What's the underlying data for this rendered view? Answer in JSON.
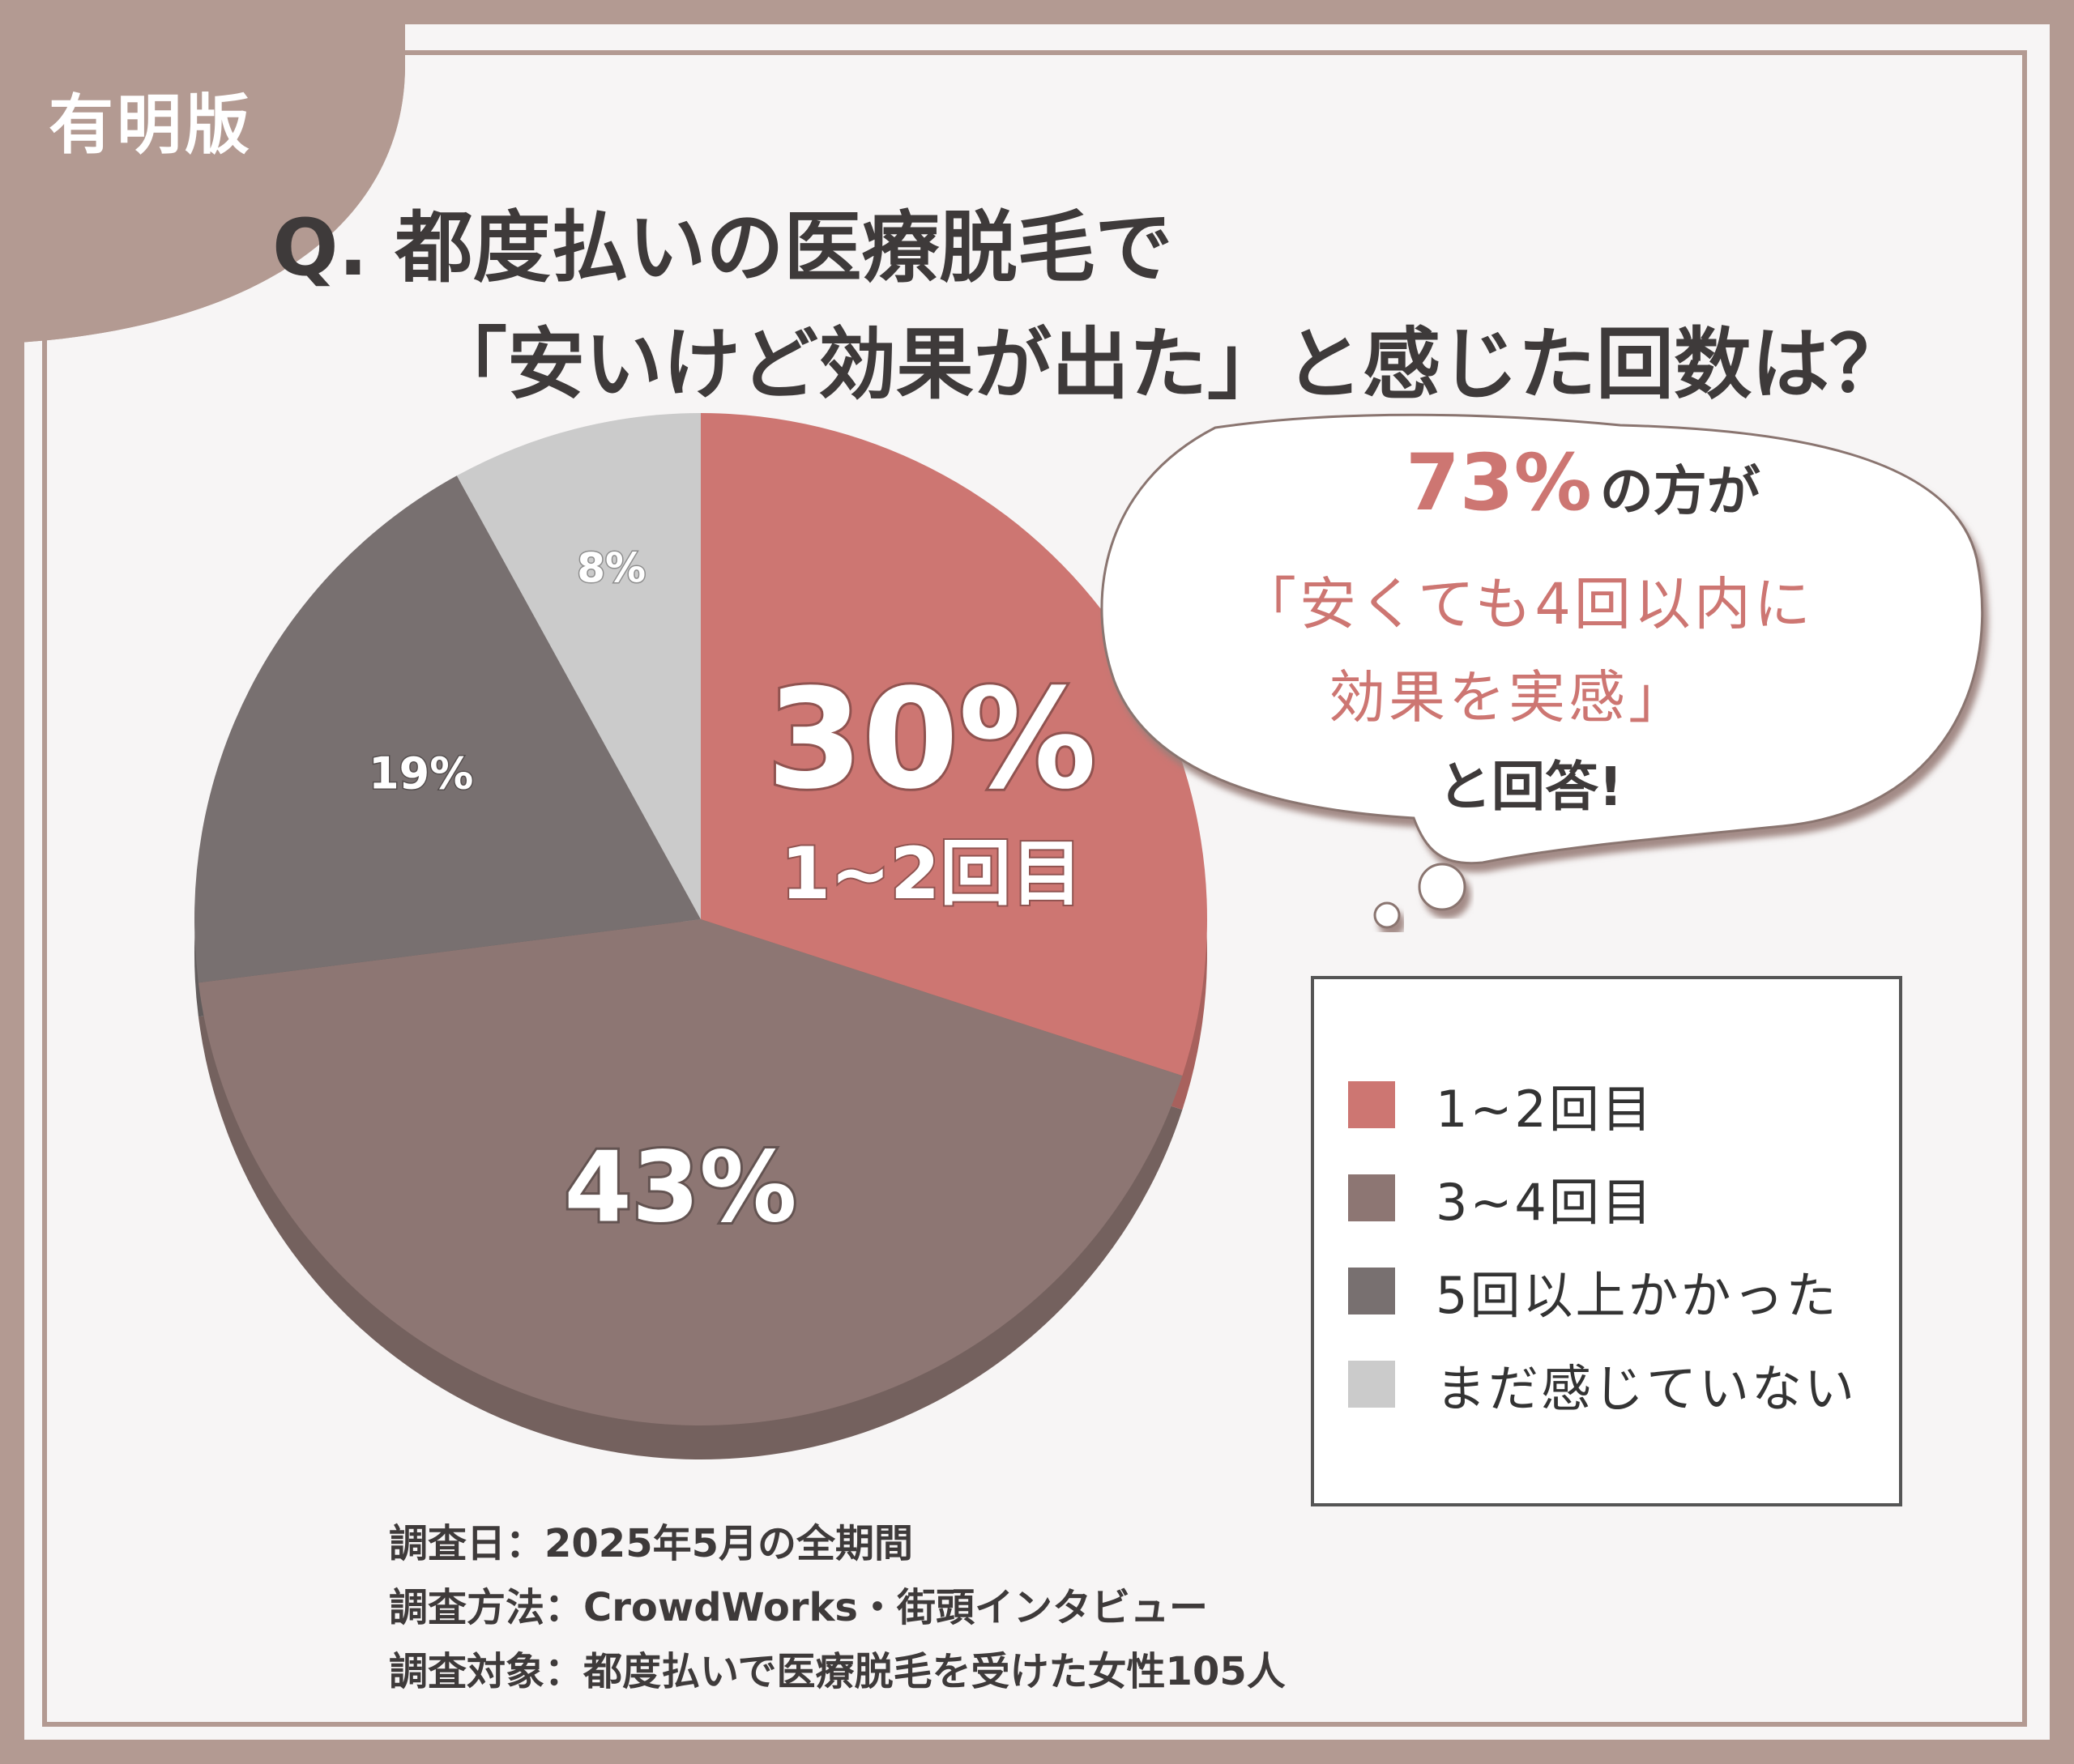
{
  "brand": "有明版",
  "title": {
    "line1": "Q. 都度払いの医療脱毛で",
    "line2": "「安いけど効果が出た」と感じた回数は？"
  },
  "callout": {
    "percent": "73%",
    "line1_rest": "の方が",
    "line2": "「安くても4回以内に",
    "line3": "効果を実感」",
    "line4": "と回答!"
  },
  "chart_data": {
    "type": "pie",
    "title": "Q. 都度払いの医療脱毛で「安いけど効果が出た」と感じた回数は？",
    "slices": [
      {
        "name": "1~2回目",
        "value": 30,
        "label": "30%",
        "sublabel": "1~2回目",
        "color": "#cd7672"
      },
      {
        "name": "3~4回目",
        "value": 43,
        "label": "43%",
        "color": "#8d7673"
      },
      {
        "name": "5回以上かかった",
        "value": 19,
        "label": "19%",
        "color": "#787070"
      },
      {
        "name": "まだ感じていない",
        "value": 8,
        "label": "8%",
        "color": "#cbcbcb"
      }
    ],
    "legend_position": "right"
  },
  "notes": [
    "調査日：2025年5月の全期間",
    "調査方法：CrowdWorks・街頭インタビュー",
    "調査対象：都度払いで医療脱毛を受けた女性105人"
  ],
  "colors": {
    "frame": "#b39a92",
    "accent": "#cd7672",
    "text": "#3e3a3a"
  }
}
